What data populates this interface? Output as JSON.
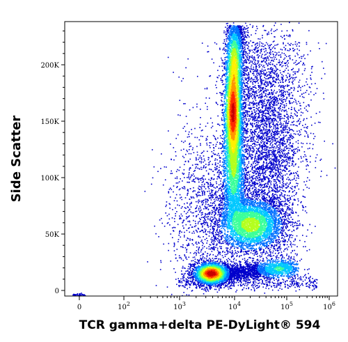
{
  "chart_data": {
    "type": "scatter",
    "subtype": "flow-cytometry density plot",
    "xlabel": "TCR gamma+delta PE-DyLight® 594",
    "ylabel": "Side Scatter",
    "x_scale": "biexponential (log above 10^3)",
    "y_scale": "linear",
    "y_ticks": [
      {
        "value": 0,
        "label": "0"
      },
      {
        "value": 50000,
        "label": "50K"
      },
      {
        "value": 100000,
        "label": "100K"
      },
      {
        "value": 150000,
        "label": "150K"
      },
      {
        "value": 200000,
        "label": "200K"
      }
    ],
    "x_ticks": [
      {
        "value": 0,
        "label": "0",
        "exp": ""
      },
      {
        "value": 100,
        "label": "10",
        "exp": "2"
      },
      {
        "value": 1000,
        "label": "10",
        "exp": "3"
      },
      {
        "value": 10000,
        "label": "10",
        "exp": "4"
      },
      {
        "value": 100000,
        "label": "10",
        "exp": "5"
      },
      {
        "value": 1000000,
        "label": "10",
        "exp": "6"
      }
    ],
    "ylim": [
      -8000,
      236000
    ],
    "grid": false,
    "legend": "none",
    "color_scale": [
      "#0000cc",
      "#0070ff",
      "#00c8ff",
      "#3cff9a",
      "#b4ff1e",
      "#fff000",
      "#ff9600",
      "#ff2a00",
      "#c80000"
    ],
    "populations": [
      {
        "x_center": 4000,
        "y_center": 17000,
        "density": "highest"
      },
      {
        "x_center": 10500,
        "y_center": 170000,
        "density": "high"
      },
      {
        "x_center": 28000,
        "y_center": 62000,
        "density": "medium"
      },
      {
        "x_center": 80000,
        "y_center": 20000,
        "density": "low"
      }
    ]
  }
}
